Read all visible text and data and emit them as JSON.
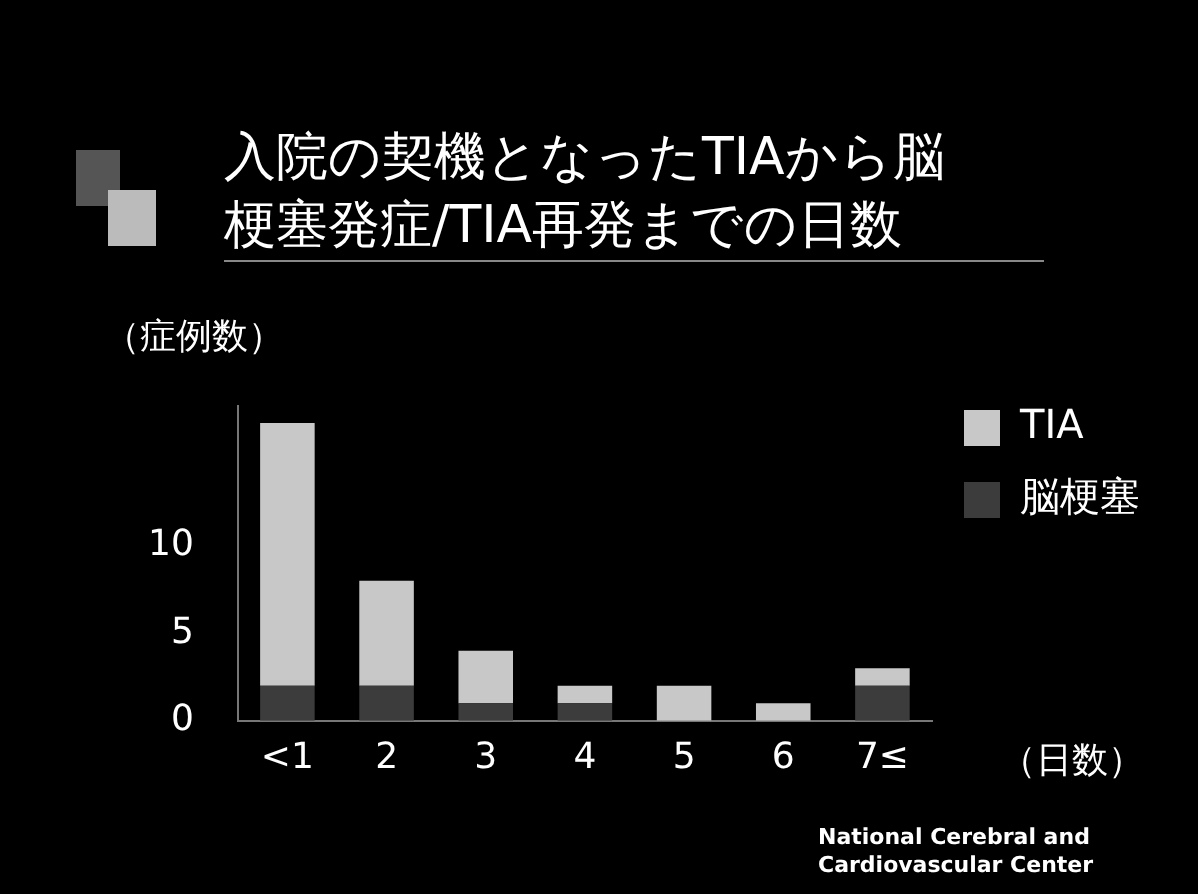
{
  "chart_data": {
    "type": "bar",
    "title": "入院の契機となったTIAから脳梗塞発症/TIA再発までの日数",
    "ylabel": "（症例数）",
    "xlabel": "（日数）",
    "categories": [
      "<1",
      "2",
      "3",
      "4",
      "5",
      "6",
      "7≤"
    ],
    "series": [
      {
        "name": "脳梗塞",
        "color": "#3c3c3c",
        "values": [
          2,
          2,
          1,
          1,
          0,
          0,
          2
        ]
      },
      {
        "name": "TIA",
        "color": "#c8c8c8",
        "values": [
          15,
          6,
          3,
          1,
          2,
          1,
          1
        ]
      }
    ],
    "stacked": true,
    "ylim": [
      0,
      18
    ],
    "yticks": [
      0,
      5,
      10
    ],
    "grid": false,
    "legend": "top right",
    "annotations": [
      "National Cerebral and Cardiovascular Center"
    ]
  }
}
